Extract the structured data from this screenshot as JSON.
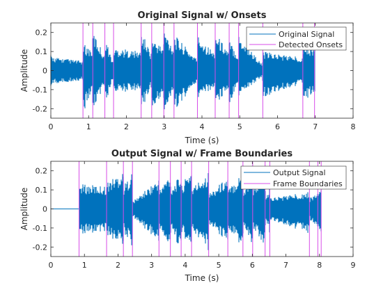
{
  "chart_data": [
    {
      "type": "line",
      "title": "Original Signal w/ Onsets",
      "xlabel": "Time (s)",
      "ylabel": "Amplitude",
      "xlim": [
        0,
        8
      ],
      "ylim": [
        -0.25,
        0.25
      ],
      "xticks": [
        "0",
        "1",
        "2",
        "3",
        "4",
        "5",
        "6",
        "7",
        "8"
      ],
      "yticks": [
        "0.2",
        "0.1",
        "0",
        "-0.1",
        "-0.2"
      ],
      "legend_position": "top-right",
      "series": [
        {
          "name": "Original Signal",
          "kind": "waveform",
          "color": "#0072BD",
          "t_start": 0.0,
          "t_end": 7.0,
          "envelope": {
            "t": [
              0.0,
              0.1,
              0.85,
              0.86,
              1.1,
              1.11,
              1.42,
              1.43,
              1.65,
              1.66,
              2.38,
              2.39,
              2.66,
              2.67,
              2.98,
              2.99,
              3.25,
              3.26,
              3.87,
              3.88,
              4.34,
              4.35,
              4.71,
              4.72,
              4.96,
              4.97,
              5.6,
              5.61,
              6.66,
              6.67,
              7.0
            ],
            "upper": [
              0.08,
              0.07,
              0.05,
              0.14,
              0.11,
              0.21,
              0.08,
              0.18,
              0.04,
              0.12,
              0.1,
              0.21,
              0.09,
              0.17,
              0.12,
              0.22,
              0.12,
              0.19,
              0.06,
              0.19,
              0.09,
              0.2,
              0.1,
              0.16,
              0.08,
              0.19,
              0.03,
              0.1,
              0.07,
              0.14,
              0.12
            ],
            "lower": [
              -0.08,
              -0.07,
              -0.05,
              -0.22,
              -0.11,
              -0.21,
              -0.08,
              -0.19,
              -0.04,
              -0.12,
              -0.1,
              -0.21,
              -0.09,
              -0.22,
              -0.12,
              -0.23,
              -0.12,
              -0.21,
              -0.06,
              -0.15,
              -0.09,
              -0.18,
              -0.1,
              -0.18,
              -0.08,
              -0.14,
              -0.03,
              -0.14,
              -0.07,
              -0.16,
              -0.12
            ]
          }
        },
        {
          "name": "Detected Onsets",
          "kind": "vlines",
          "color": "#D74CE8",
          "x": [
            0.85,
            1.11,
            1.43,
            1.66,
            2.39,
            2.67,
            2.99,
            3.26,
            3.88,
            4.35,
            4.72,
            4.97,
            5.61,
            6.67,
            6.98
          ]
        }
      ]
    },
    {
      "type": "line",
      "title": "Output Signal w/ Frame Boundaries",
      "xlabel": "Time (s)",
      "ylabel": "Amplitude",
      "xlim": [
        0,
        9
      ],
      "ylim": [
        -0.25,
        0.25
      ],
      "xticks": [
        "0",
        "1",
        "2",
        "3",
        "4",
        "5",
        "6",
        "7",
        "8",
        "9"
      ],
      "yticks": [
        "0.2",
        "0.1",
        "0",
        "-0.1",
        "-0.2"
      ],
      "legend_position": "top-right",
      "series": [
        {
          "name": "Output Signal",
          "kind": "waveform",
          "color": "#0072BD",
          "t_start": 0.0,
          "t_end": 8.05,
          "envelope": {
            "t": [
              0.0,
              0.84,
              0.85,
              1.66,
              1.67,
              2.16,
              2.17,
              2.43,
              2.44,
              3.22,
              3.23,
              3.56,
              3.57,
              3.88,
              3.89,
              4.19,
              4.2,
              4.7,
              4.71,
              5.27,
              5.28,
              5.72,
              5.73,
              6.01,
              6.02,
              6.38,
              6.39,
              6.52,
              6.53,
              7.7,
              7.71,
              8.05
            ],
            "upper": [
              0.0,
              0.0,
              0.13,
              0.12,
              0.14,
              0.2,
              0.12,
              0.2,
              0.04,
              0.16,
              0.1,
              0.19,
              0.11,
              0.18,
              0.12,
              0.22,
              0.11,
              0.2,
              0.08,
              0.17,
              0.1,
              0.2,
              0.09,
              0.19,
              0.1,
              0.23,
              0.04,
              0.12,
              0.06,
              0.09,
              0.06,
              0.1
            ],
            "lower": [
              0.0,
              0.0,
              -0.13,
              -0.12,
              -0.14,
              -0.2,
              -0.12,
              -0.21,
              -0.04,
              -0.18,
              -0.1,
              -0.22,
              -0.11,
              -0.22,
              -0.12,
              -0.22,
              -0.11,
              -0.23,
              -0.08,
              -0.18,
              -0.1,
              -0.22,
              -0.09,
              -0.2,
              -0.1,
              -0.2,
              -0.04,
              -0.13,
              -0.06,
              -0.13,
              -0.06,
              -0.12
            ]
          }
        },
        {
          "name": "Frame Boundaries",
          "kind": "vlines",
          "color": "#D74CE8",
          "x": [
            0.84,
            1.66,
            2.16,
            2.43,
            3.22,
            3.56,
            3.88,
            4.19,
            4.7,
            5.27,
            5.72,
            6.01,
            6.38,
            6.52,
            7.7,
            7.95,
            8.05
          ]
        }
      ]
    }
  ]
}
